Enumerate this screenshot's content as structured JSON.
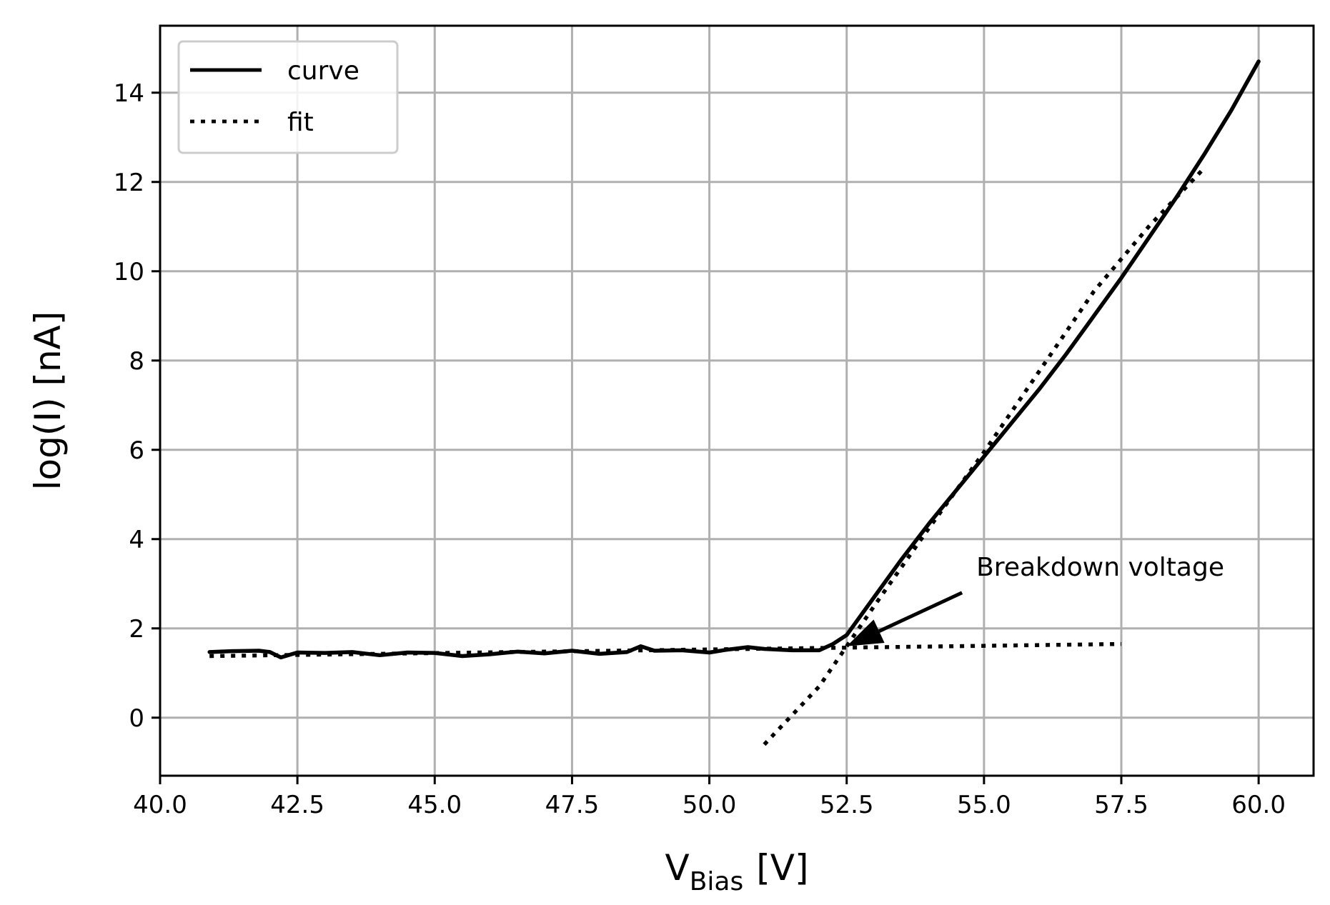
{
  "chart_data": {
    "type": "line",
    "xlabel": {
      "main": "V",
      "subscript": "Bias",
      "unit": "[V]"
    },
    "ylabel": "log(I) [nA]",
    "xlim": [
      40.0,
      61.0
    ],
    "ylim": [
      -1.3,
      15.5
    ],
    "xticks": [
      40.0,
      42.5,
      45.0,
      47.5,
      50.0,
      52.5,
      55.0,
      57.5,
      60.0
    ],
    "xtick_labels": [
      "40.0",
      "42.5",
      "45.0",
      "47.5",
      "50.0",
      "52.5",
      "55.0",
      "57.5",
      "60.0"
    ],
    "yticks": [
      0,
      2,
      4,
      6,
      8,
      10,
      12,
      14
    ],
    "ytick_labels": [
      "0",
      "2",
      "4",
      "6",
      "8",
      "10",
      "12",
      "14"
    ],
    "grid": true,
    "legend": {
      "position": "upper-left",
      "entries": [
        {
          "label": "curve",
          "style": "solid"
        },
        {
          "label": "fit",
          "style": "dotted"
        }
      ]
    },
    "series": [
      {
        "name": "curve",
        "style": "solid",
        "color": "#000000",
        "x": [
          40.9,
          41.3,
          41.8,
          42.0,
          42.2,
          42.5,
          43.0,
          43.5,
          44.0,
          44.5,
          45.0,
          45.5,
          46.0,
          46.5,
          47.0,
          47.5,
          48.0,
          48.5,
          48.75,
          49.0,
          49.5,
          50.0,
          50.3,
          50.7,
          51.0,
          51.5,
          52.0,
          52.25,
          52.5,
          53.0,
          53.5,
          54.0,
          54.5,
          55.0,
          55.5,
          56.0,
          56.5,
          57.0,
          57.5,
          58.0,
          58.5,
          59.0,
          59.5,
          60.0
        ],
        "y": [
          1.47,
          1.49,
          1.5,
          1.47,
          1.35,
          1.46,
          1.45,
          1.47,
          1.4,
          1.46,
          1.45,
          1.38,
          1.42,
          1.48,
          1.44,
          1.5,
          1.43,
          1.47,
          1.6,
          1.5,
          1.51,
          1.46,
          1.52,
          1.58,
          1.54,
          1.51,
          1.51,
          1.65,
          1.85,
          2.7,
          3.55,
          4.35,
          5.1,
          5.85,
          6.6,
          7.35,
          8.15,
          9.0,
          9.85,
          10.75,
          11.65,
          12.6,
          13.6,
          14.7
        ]
      },
      {
        "name": "fit",
        "style": "dotted",
        "color": "#000000",
        "segments": [
          {
            "x": [
              40.9,
              57.5
            ],
            "y": [
              1.38,
              1.65
            ]
          },
          {
            "x": [
              51.0,
              52.0,
              53.0,
              54.0,
              55.0,
              56.0,
              57.0,
              58.0,
              59.0
            ],
            "y": [
              -0.6,
              0.7,
              2.5,
              4.25,
              5.95,
              7.75,
              9.55,
              11.0,
              12.3
            ]
          }
        ]
      }
    ],
    "annotations": [
      {
        "text": "Breakdown voltage",
        "xy": [
          52.5,
          1.6
        ],
        "xytext": [
          54.6,
          2.8
        ],
        "arrow": true
      }
    ]
  }
}
